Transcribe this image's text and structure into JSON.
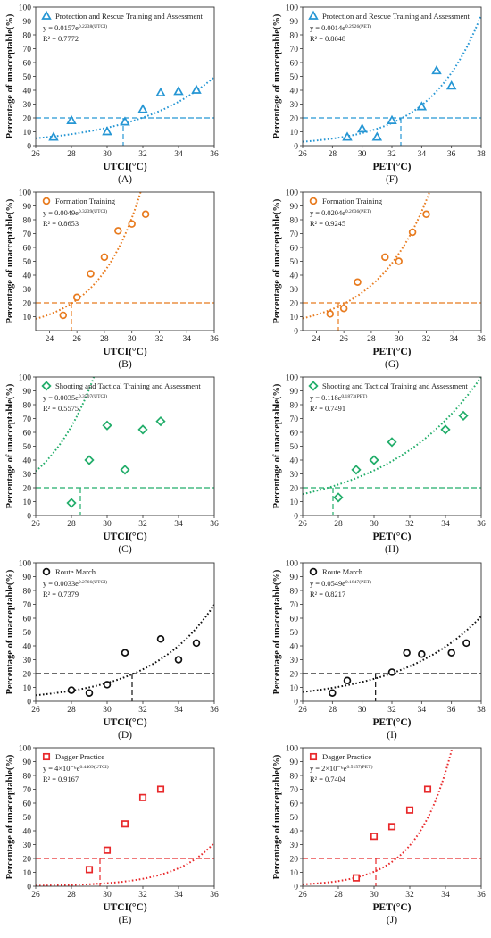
{
  "chart_data": [
    {
      "type": "scatter",
      "panel_label": "(A)",
      "xlabel": "UTCI(°C)",
      "ylabel": "Percentage of unacceptable(%)",
      "xlim": [
        26,
        36
      ],
      "ylim": [
        0,
        100
      ],
      "xticks": [
        26,
        28,
        30,
        32,
        34,
        36
      ],
      "yticks": [
        0,
        10,
        20,
        30,
        40,
        50,
        60,
        70,
        80,
        90,
        100
      ],
      "series": [
        {
          "name": "Protection and Rescue Training and Assessment",
          "marker": "triangle",
          "color": "#2596d4",
          "x": [
            27,
            28,
            30,
            31,
            32,
            33,
            34,
            35
          ],
          "y": [
            6,
            18,
            10,
            17,
            26,
            38,
            39,
            40
          ]
        }
      ],
      "fit": {
        "a": 0.0157,
        "b": 0.2238,
        "x_range": [
          26,
          36
        ]
      },
      "equation": {
        "lhs": "y = 0.0157e",
        "sup": "0.2238(UTCI)"
      },
      "r2": "R² = 0.7772",
      "threshold": {
        "y": 20,
        "x": 30.9
      }
    },
    {
      "type": "scatter",
      "panel_label": "(B)",
      "xlabel": "UTCI(°C)",
      "ylabel": "Percentage of unacceptable(%)",
      "xlim": [
        23,
        36
      ],
      "ylim": [
        0,
        100
      ],
      "xticks": [
        24,
        26,
        28,
        30,
        32,
        34,
        36
      ],
      "yticks": [
        10,
        20,
        30,
        40,
        50,
        60,
        70,
        80,
        90,
        100
      ],
      "series": [
        {
          "name": "Formation Training",
          "marker": "circle",
          "color": "#e87b1f",
          "x": [
            25,
            26,
            27,
            28,
            29,
            30,
            31
          ],
          "y": [
            11,
            24,
            41,
            53,
            72,
            77,
            84
          ]
        }
      ],
      "fit": {
        "a": 0.0049,
        "b": 0.3239,
        "x_range": [
          23,
          36
        ]
      },
      "equation": {
        "lhs": "y = 0.0049e",
        "sup": "0.3239(UTCI)"
      },
      "r2": "R² = 0.8653",
      "threshold": {
        "y": 20,
        "x": 25.6
      }
    },
    {
      "type": "scatter",
      "panel_label": "(C)",
      "xlabel": "UTCI(°C)",
      "ylabel": "Percentage of unacceptable(%)",
      "xlim": [
        26,
        36
      ],
      "ylim": [
        0,
        100
      ],
      "xticks": [
        26,
        28,
        30,
        32,
        34,
        36
      ],
      "yticks": [
        0,
        10,
        20,
        30,
        40,
        50,
        60,
        70,
        80,
        90,
        100
      ],
      "series": [
        {
          "name": "Shooting and Tactical Training and Assessment",
          "marker": "diamond",
          "color": "#22ad6a",
          "x": [
            28,
            29,
            30,
            31,
            32,
            33
          ],
          "y": [
            9,
            40,
            65,
            33,
            62,
            68
          ]
        }
      ],
      "fit": {
        "a": 0.0035,
        "b": 0.3507,
        "x_range": [
          26,
          36
        ]
      },
      "equation": {
        "lhs": "y = 0.0035e",
        "sup": "0.3507(UTCI)"
      },
      "r2": "R² = 0.5575",
      "threshold": {
        "y": 20,
        "x": 28.5
      }
    },
    {
      "type": "scatter",
      "panel_label": "(D)",
      "xlabel": "UTCI(°C)",
      "ylabel": "Percentage of unacceptable(%)",
      "xlim": [
        26,
        36
      ],
      "ylim": [
        0,
        100
      ],
      "xticks": [
        26,
        28,
        30,
        32,
        34,
        36
      ],
      "yticks": [
        0,
        10,
        20,
        30,
        40,
        50,
        60,
        70,
        80,
        90,
        100
      ],
      "series": [
        {
          "name": "Route March",
          "marker": "circle",
          "color": "#111111",
          "x": [
            28,
            29,
            30,
            31,
            33,
            34,
            35
          ],
          "y": [
            8,
            6,
            12,
            35,
            45,
            30,
            42
          ]
        }
      ],
      "fit": {
        "a": 0.0033,
        "b": 0.2766,
        "x_range": [
          26,
          36
        ]
      },
      "equation": {
        "lhs": "y = 0.0033e",
        "sup": "0.2766(UTCI)"
      },
      "r2": "R² = 0.7379",
      "threshold": {
        "y": 20,
        "x": 31.4
      }
    },
    {
      "type": "scatter",
      "panel_label": "(E)",
      "xlabel": "UTCI(°C)",
      "ylabel": "Percentage of unacceptable(%)",
      "xlim": [
        26,
        36
      ],
      "ylim": [
        0,
        100
      ],
      "xticks": [
        26,
        28,
        30,
        32,
        34,
        36
      ],
      "yticks": [
        0,
        10,
        20,
        30,
        40,
        50,
        60,
        70,
        80,
        90,
        100
      ],
      "series": [
        {
          "name": "Dagger Practice",
          "marker": "square",
          "color": "#e8292b",
          "x": [
            29,
            30,
            31,
            32,
            33
          ],
          "y": [
            12,
            26,
            45,
            64,
            70
          ]
        }
      ],
      "fit": {
        "a": 4e-06,
        "b": 0.4409,
        "x_range": [
          26,
          36
        ]
      },
      "equation": {
        "lhs": "y = 4×10⁻⁶e",
        "sup": "0.4409(UTCI)"
      },
      "r2": "R² = 0.9167",
      "threshold": {
        "y": 20,
        "x": 29.6
      }
    },
    {
      "type": "scatter",
      "panel_label": "(F)",
      "xlabel": "PET(°C)",
      "ylabel": "Percentage of unacceptable(%)",
      "xlim": [
        26,
        38
      ],
      "ylim": [
        0,
        100
      ],
      "xticks": [
        26,
        28,
        30,
        32,
        34,
        36,
        38
      ],
      "yticks": [
        0,
        10,
        20,
        30,
        40,
        50,
        60,
        70,
        80,
        90,
        100
      ],
      "series": [
        {
          "name": "Protection and Rescue Training and Assessment",
          "marker": "triangle",
          "color": "#2596d4",
          "x": [
            29,
            30,
            31,
            32,
            34,
            35,
            36
          ],
          "y": [
            6,
            12,
            6,
            18,
            28,
            54,
            43
          ]
        }
      ],
      "fit": {
        "a": 0.0014,
        "b": 0.2926,
        "x_range": [
          26,
          38
        ]
      },
      "equation": {
        "lhs": "y = 0.0014e",
        "sup": "0.2926(PET)"
      },
      "r2": "R² = 0.8648",
      "threshold": {
        "y": 20,
        "x": 32.6
      }
    },
    {
      "type": "scatter",
      "panel_label": "(G)",
      "xlabel": "PET(°C)",
      "ylabel": "Percentage of unacceptable(%)",
      "xlim": [
        23,
        36
      ],
      "ylim": [
        0,
        100
      ],
      "xticks": [
        24,
        26,
        28,
        30,
        32,
        34,
        36
      ],
      "yticks": [
        0,
        10,
        20,
        30,
        40,
        50,
        60,
        70,
        80,
        90,
        100
      ],
      "series": [
        {
          "name": "Formation Training",
          "marker": "circle",
          "color": "#e87b1f",
          "x": [
            25,
            26,
            27,
            29,
            30,
            31,
            32
          ],
          "y": [
            12,
            16,
            35,
            53,
            50,
            71,
            84
          ]
        }
      ],
      "fit": {
        "a": 0.0204,
        "b": 0.2636,
        "x_range": [
          23,
          36
        ]
      },
      "equation": {
        "lhs": "y = 0.0204e",
        "sup": "0.2636(PET)"
      },
      "r2": "R² = 0.9245",
      "threshold": {
        "y": 20,
        "x": 25.6
      }
    },
    {
      "type": "scatter",
      "panel_label": "(H)",
      "xlabel": "PET(°C)",
      "ylabel": "Percentage of unacceptable(%)",
      "xlim": [
        26,
        36
      ],
      "ylim": [
        0,
        100
      ],
      "xticks": [
        26,
        28,
        30,
        32,
        34,
        36
      ],
      "yticks": [
        0,
        10,
        20,
        30,
        40,
        50,
        60,
        70,
        80,
        90,
        100
      ],
      "series": [
        {
          "name": "Shooting and Tactical Training and Assessment",
          "marker": "diamond",
          "color": "#22ad6a",
          "x": [
            28,
            29,
            30,
            31,
            34,
            35
          ],
          "y": [
            13,
            33,
            40,
            53,
            62,
            72
          ]
        }
      ],
      "fit": {
        "a": 0.118,
        "b": 0.1873,
        "x_range": [
          26,
          36
        ]
      },
      "equation": {
        "lhs": "y = 0.118e",
        "sup": "0.1873(PET)"
      },
      "r2": "R² = 0.7491",
      "threshold": {
        "y": 20,
        "x": 27.7
      }
    },
    {
      "type": "scatter",
      "panel_label": "(I)",
      "xlabel": "PET(°C)",
      "ylabel": "Percentage of unacceptable(%)",
      "xlim": [
        26,
        38
      ],
      "ylim": [
        0,
        100
      ],
      "xticks": [
        26,
        28,
        30,
        32,
        34,
        36,
        38
      ],
      "yticks": [
        0,
        10,
        20,
        30,
        40,
        50,
        60,
        70,
        80,
        90,
        100
      ],
      "series": [
        {
          "name": "Route March",
          "marker": "circle",
          "color": "#111111",
          "x": [
            28,
            29,
            32,
            33,
            34,
            36,
            37
          ],
          "y": [
            6,
            15,
            21,
            35,
            34,
            35,
            42
          ]
        }
      ],
      "fit": {
        "a": 0.0549,
        "b": 0.1847,
        "x_range": [
          26,
          38
        ]
      },
      "equation": {
        "lhs": "y = 0.0549e",
        "sup": "0.1847(PET)"
      },
      "r2": "R² = 0.8217",
      "threshold": {
        "y": 20,
        "x": 30.9
      }
    },
    {
      "type": "scatter",
      "panel_label": "(J)",
      "xlabel": "PET(°C)",
      "ylabel": "Percentage of unacceptable(%)",
      "xlim": [
        26,
        36
      ],
      "ylim": [
        0,
        100
      ],
      "xticks": [
        26,
        28,
        30,
        32,
        34,
        36
      ],
      "yticks": [
        0,
        10,
        20,
        30,
        40,
        50,
        60,
        70,
        80,
        90,
        100
      ],
      "series": [
        {
          "name": "Dagger Practice",
          "marker": "square",
          "color": "#e8292b",
          "x": [
            29,
            30,
            31,
            32,
            33
          ],
          "y": [
            6,
            36,
            43,
            55,
            70
          ]
        }
      ],
      "fit": {
        "a": 2e-06,
        "b": 0.5157,
        "x_range": [
          26,
          36
        ]
      },
      "equation": {
        "lhs": "y = 2×10⁻⁶e",
        "sup": "0.5157(PET)"
      },
      "r2": "R² = 0.7404",
      "threshold": {
        "y": 20,
        "x": 30.1
      }
    }
  ]
}
